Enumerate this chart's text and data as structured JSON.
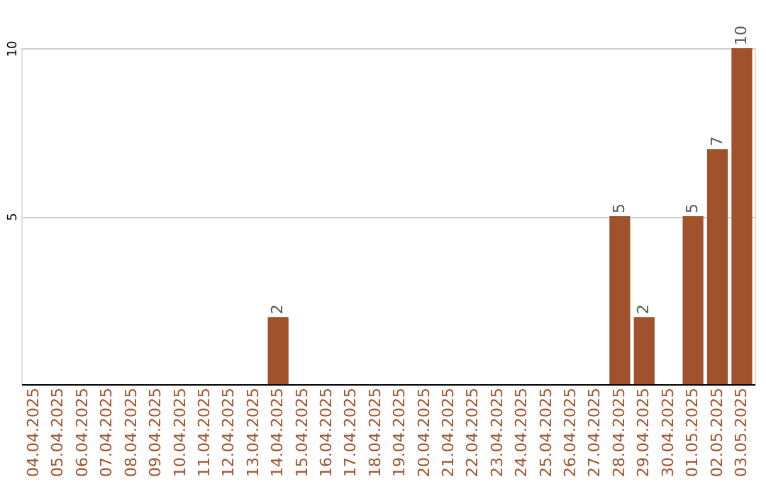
{
  "chart_data": {
    "type": "bar",
    "categories": [
      "04.04.2025",
      "05.04.2025",
      "06.04.2025",
      "07.04.2025",
      "08.04.2025",
      "09.04.2025",
      "10.04.2025",
      "11.04.2025",
      "12.04.2025",
      "13.04.2025",
      "14.04.2025",
      "15.04.2025",
      "16.04.2025",
      "17.04.2025",
      "18.04.2025",
      "19.04.2025",
      "20.04.2025",
      "21.04.2025",
      "22.04.2025",
      "23.04.2025",
      "24.04.2025",
      "25.04.2025",
      "26.04.2025",
      "27.04.2025",
      "28.04.2025",
      "29.04.2025",
      "30.04.2025",
      "01.05.2025",
      "02.05.2025",
      "03.05.2025"
    ],
    "values": [
      0,
      0,
      0,
      0,
      0,
      0,
      0,
      0,
      0,
      0,
      2,
      0,
      0,
      0,
      0,
      0,
      0,
      0,
      0,
      0,
      0,
      0,
      0,
      0,
      5,
      2,
      0,
      5,
      7,
      10
    ],
    "value_labels": [
      null,
      null,
      null,
      null,
      null,
      null,
      null,
      null,
      null,
      null,
      "2",
      null,
      null,
      null,
      null,
      null,
      null,
      null,
      null,
      null,
      null,
      null,
      null,
      null,
      "5",
      "2",
      null,
      "5",
      "7",
      "10"
    ],
    "color": "#a0522d",
    "ylim": [
      0,
      10
    ],
    "yticks": [
      5,
      10
    ],
    "grid": "y"
  }
}
